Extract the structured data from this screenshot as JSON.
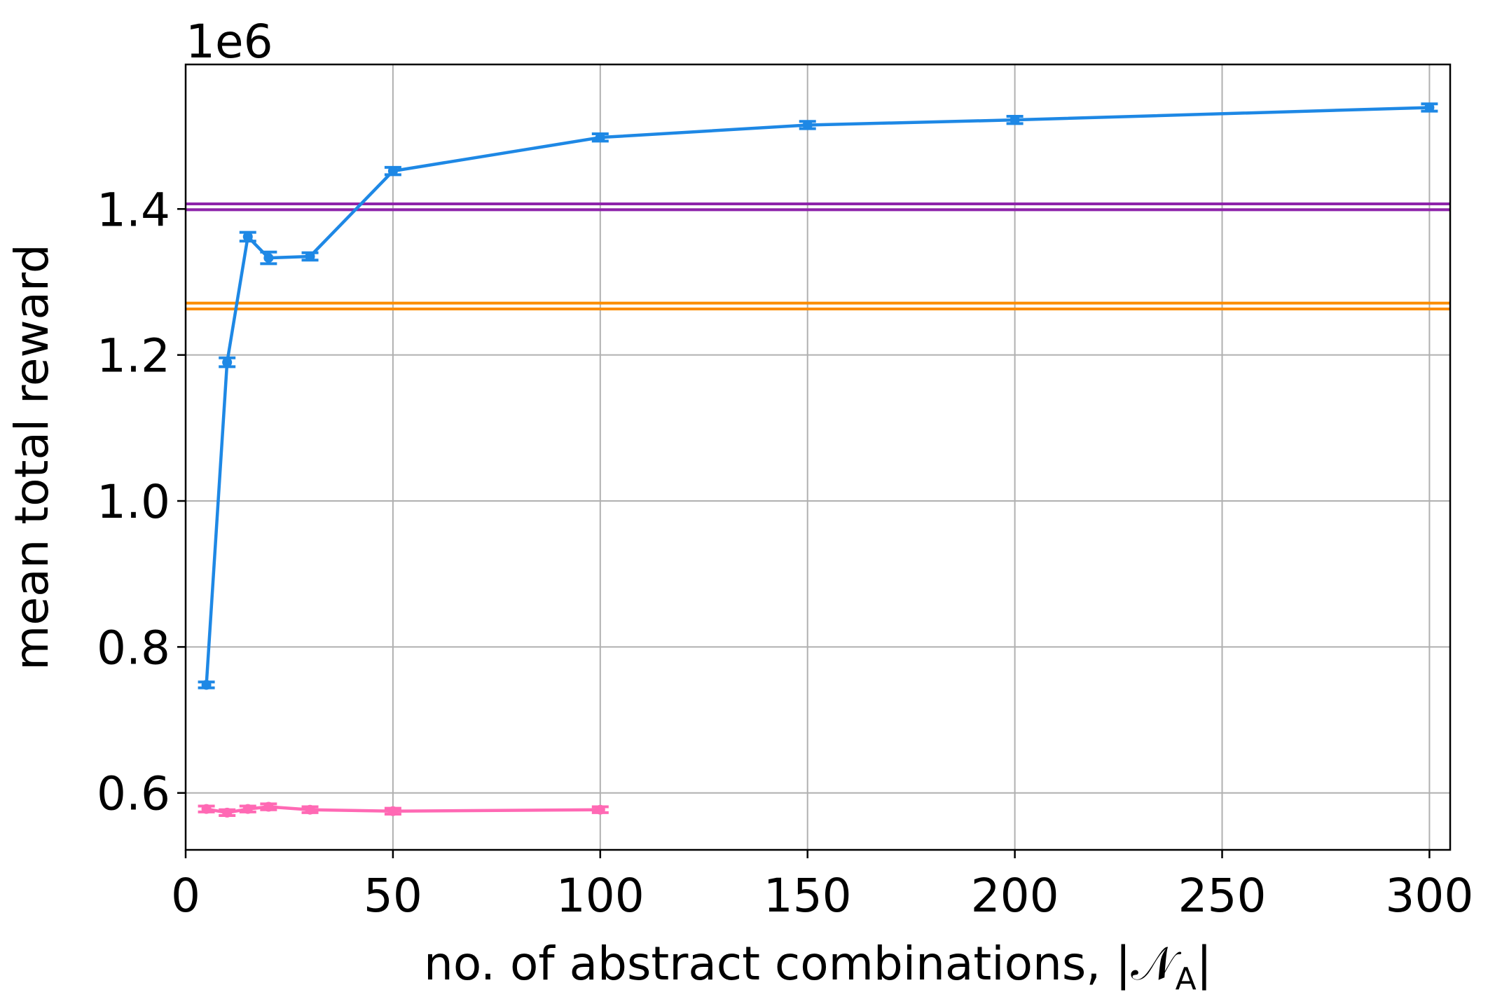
{
  "chart_data": {
    "type": "line",
    "xlabel": "no. of abstract combinations, |𝒩",
    "xlabel_sub": "A",
    "xlabel_end": "|",
    "ylabel": "mean total reward",
    "y_offset_label": "1e6",
    "xlim": [
      0,
      305
    ],
    "ylim": [
      0.522,
      1.598
    ],
    "x_ticks": [
      0,
      50,
      100,
      150,
      200,
      250,
      300
    ],
    "x_tick_labels": [
      "0",
      "50",
      "100",
      "150",
      "200",
      "250",
      "300"
    ],
    "y_ticks": [
      0.6,
      0.8,
      1.0,
      1.2,
      1.4
    ],
    "y_tick_labels": [
      "0.6",
      "0.8",
      "1.0",
      "1.2",
      "1.4"
    ],
    "grid": true,
    "series": [
      {
        "color": "#1e88e5",
        "x": [
          5,
          10,
          15,
          20,
          30,
          50,
          100,
          150,
          200,
          300
        ],
        "y": [
          0.748,
          1.19,
          1.362,
          1.333,
          1.335,
          1.452,
          1.498,
          1.515,
          1.522,
          1.539
        ],
        "err": [
          0.004,
          0.006,
          0.006,
          0.008,
          0.005,
          0.005,
          0.005,
          0.005,
          0.005,
          0.005
        ]
      },
      {
        "color": "#ff69b4",
        "x": [
          5,
          10,
          15,
          20,
          30,
          50,
          100
        ],
        "y": [
          0.578,
          0.573,
          0.578,
          0.581,
          0.577,
          0.575,
          0.577
        ],
        "err": [
          0.004,
          0.004,
          0.004,
          0.004,
          0.004,
          0.004,
          0.004
        ]
      }
    ],
    "hlines": [
      {
        "color": "#8e24aa",
        "y": 1.403,
        "band": 0.004
      },
      {
        "color": "#fb8c00",
        "y": 1.267,
        "band": 0.004
      }
    ]
  }
}
